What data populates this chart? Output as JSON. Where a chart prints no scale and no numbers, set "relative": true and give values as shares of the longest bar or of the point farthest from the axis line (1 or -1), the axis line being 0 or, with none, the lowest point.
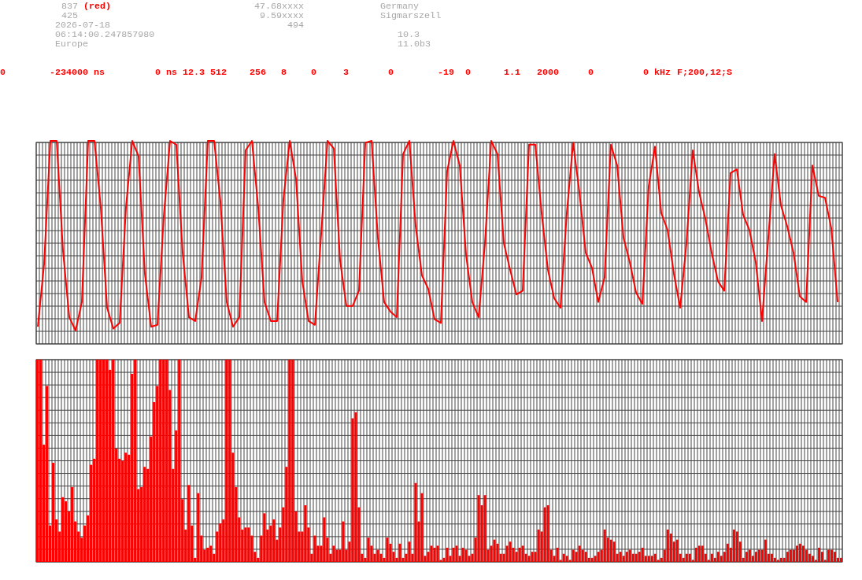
{
  "chart_data": [
    {
      "type": "line",
      "relative": true,
      "grid": true,
      "annotations": [
        "837",
        "(red)",
        "425",
        "2026-07-18",
        "06:14:00.247857980",
        "Europe",
        "47.68xxxx",
        "9.59xxxx",
        "494",
        "Germany",
        "Sigmarszell",
        "10.3",
        "11.0b3",
        "0",
        "-234000 ns",
        "0 ns",
        "12.3",
        "512",
        "256",
        "8",
        "0",
        "3",
        "0",
        "-19",
        "0",
        "1.1",
        "2000",
        "0",
        "0 kHz",
        "F;200,12;S"
      ],
      "categories": [
        null,
        null,
        null,
        null,
        null,
        null,
        null,
        null,
        null,
        null,
        null,
        null,
        null,
        null,
        null,
        null,
        null,
        null,
        null,
        null,
        null,
        null,
        null,
        null,
        null,
        null,
        null,
        null,
        null,
        null,
        null,
        null,
        null,
        null,
        null,
        null,
        null,
        null,
        null,
        null,
        null,
        null,
        null,
        null,
        null,
        null,
        null,
        null,
        null,
        null,
        null,
        null,
        null,
        null,
        null,
        null,
        null,
        null,
        null,
        null,
        null,
        null,
        null,
        null,
        null,
        null,
        null,
        null,
        null,
        null,
        null,
        null,
        null,
        null,
        null,
        null,
        null,
        null,
        null,
        null,
        null,
        null,
        null,
        null,
        null,
        null,
        null,
        null,
        null,
        null,
        null,
        null,
        null,
        null,
        null,
        null,
        null,
        null,
        null,
        null,
        null,
        null,
        null,
        null,
        null,
        null,
        null,
        null,
        null,
        null,
        null,
        null,
        null,
        null,
        null,
        null,
        null,
        null,
        null,
        null,
        null,
        null,
        null,
        null,
        null,
        null,
        null,
        null
      ],
      "series": [
        {
          "color": "#ff0000",
          "values": [
            0.02,
            0.35,
            1,
            1,
            0.42,
            0.07,
            0,
            0.15,
            1,
            1,
            0.65,
            0.12,
            0.01,
            0.04,
            0.65,
            1,
            0.92,
            0.3,
            0.02,
            0.03,
            0.6,
            1,
            0.98,
            0.41,
            0.07,
            0.05,
            0.28,
            1,
            1,
            0.68,
            0.15,
            0.02,
            0.07,
            0.95,
            1,
            0.65,
            0.15,
            0.05,
            0.05,
            0.69,
            1,
            0.8,
            0.26,
            0.05,
            0.03,
            0.51,
            1,
            0.96,
            0.37,
            0.13,
            0.13,
            0.21,
            0.99,
            1,
            0.49,
            0.15,
            0.1,
            0.07,
            0.93,
            1,
            0.55,
            0.29,
            0.22,
            0.06,
            0.04,
            0.84,
            1,
            0.87,
            0.4,
            0.15,
            0.07,
            0.46,
            1,
            0.93,
            0.46,
            0.32,
            0.19,
            0.21,
            0.98,
            0.98,
            0.62,
            0.32,
            0.17,
            0.12,
            0.62,
            0.99,
            0.73,
            0.41,
            0.33,
            0.15,
            0.28,
            0.98,
            0.87,
            0.49,
            0.36,
            0.2,
            0.14,
            0.76,
            0.97,
            0.62,
            0.53,
            0.3,
            0.12,
            0.46,
            0.95,
            0.73,
            0.59,
            0.41,
            0.26,
            0.21,
            0.83,
            0.85,
            0.61,
            0.53,
            0.36,
            0.05,
            0.49,
            0.93,
            0.66,
            0.55,
            0.41,
            0.18,
            0.15,
            0.87,
            0.71,
            0.7,
            0.54,
            0.15
          ]
        }
      ]
    },
    {
      "type": "bar",
      "relative": true,
      "grid": true,
      "categories": [
        null,
        null,
        null,
        null,
        null,
        null,
        null,
        null,
        null,
        null,
        null,
        null,
        null,
        null,
        null,
        null,
        null,
        null,
        null,
        null,
        null,
        null,
        null,
        null,
        null,
        null,
        null,
        null,
        null,
        null,
        null,
        null,
        null,
        null,
        null,
        null,
        null,
        null,
        null,
        null,
        null,
        null,
        null,
        null,
        null,
        null,
        null,
        null,
        null,
        null,
        null,
        null,
        null,
        null,
        null,
        null,
        null,
        null,
        null,
        null,
        null,
        null,
        null,
        null,
        null,
        null,
        null,
        null,
        null,
        null,
        null,
        null,
        null,
        null,
        null,
        null,
        null,
        null,
        null,
        null,
        null,
        null,
        null,
        null,
        null,
        null,
        null,
        null,
        null,
        null,
        null,
        null,
        null,
        null,
        null,
        null,
        null,
        null,
        null,
        null,
        null,
        null,
        null,
        null,
        null,
        null,
        null,
        null,
        null,
        null,
        null,
        null,
        null,
        null,
        null,
        null,
        null,
        null,
        null,
        null,
        null,
        null,
        null,
        null,
        null,
        null,
        null,
        null,
        null,
        null,
        null,
        null,
        null,
        null,
        null,
        null,
        null,
        null,
        null,
        null,
        null,
        null,
        null,
        null,
        null,
        null,
        null,
        null,
        null,
        null,
        null,
        null,
        null,
        null,
        null,
        null,
        null,
        null,
        null,
        null,
        null,
        null,
        null,
        null,
        null,
        null,
        null,
        null,
        null,
        null,
        null,
        null,
        null,
        null,
        null,
        null,
        null,
        null,
        null,
        null,
        null,
        null,
        null,
        null,
        null,
        null,
        null,
        null,
        null,
        null,
        null,
        null,
        null,
        null,
        null,
        null,
        null,
        null,
        null,
        null,
        null,
        null,
        null,
        null,
        null,
        null,
        null,
        null,
        null,
        null,
        null,
        null,
        null,
        null,
        null,
        null,
        null,
        null,
        null,
        null,
        null,
        null,
        null,
        null,
        null,
        null,
        null,
        null,
        null,
        null,
        null,
        null,
        null,
        null,
        null,
        null,
        null,
        null,
        null,
        null,
        null,
        null,
        null,
        null,
        null,
        null,
        null,
        null,
        null,
        null,
        null,
        null,
        null,
        null,
        null,
        null
      ],
      "series": [
        {
          "color": "#ff0000",
          "values": [
            1,
            1,
            0.58,
            0.87,
            0.18,
            0.49,
            0.21,
            0.15,
            0.32,
            0.3,
            0.25,
            0.37,
            0.2,
            0.15,
            0.12,
            0.18,
            0.23,
            0.48,
            0.51,
            1,
            1,
            1,
            1,
            0.95,
            1,
            0.56,
            0.51,
            0.5,
            0.54,
            0.53,
            0.93,
            1,
            0.36,
            0.37,
            0.47,
            0.46,
            0.62,
            0.79,
            0.87,
            1,
            1,
            1,
            0.85,
            0.46,
            0.65,
            1,
            0.31,
            0.16,
            0.38,
            0.18,
            0.02,
            0.34,
            0.13,
            0.06,
            0.07,
            0.08,
            0.04,
            0.15,
            0.19,
            0.21,
            1,
            1,
            0.54,
            0.37,
            0.22,
            0.16,
            0.17,
            0.17,
            0.13,
            0.05,
            0.02,
            0.13,
            0.24,
            0.16,
            0.18,
            0.21,
            0.11,
            0.17,
            0.27,
            0.47,
            1,
            1,
            0.25,
            0.15,
            0.15,
            0.28,
            0.17,
            0.04,
            0.13,
            0.08,
            0.08,
            0.22,
            0.12,
            0.04,
            0.08,
            0.06,
            0.06,
            0.2,
            0.06,
            0.1,
            0.71,
            0.74,
            0.27,
            0.04,
            0.02,
            0.12,
            0.08,
            0.04,
            0.06,
            0.04,
            0.02,
            0.12,
            0.09,
            0.05,
            0.02,
            0.09,
            0.02,
            0.04,
            0.1,
            0.04,
            0.39,
            0.2,
            0.34,
            0.03,
            0.05,
            0.08,
            0.07,
            0.08,
            0.01,
            0.02,
            0.07,
            0.03,
            0.07,
            0.08,
            0.03,
            0.07,
            0.06,
            0.03,
            0.04,
            0.12,
            0.33,
            0.28,
            0.33,
            0.06,
            0.08,
            0.11,
            0.09,
            0.04,
            0.04,
            0.08,
            0.1,
            0.07,
            0.05,
            0.07,
            0.08,
            0.04,
            0.03,
            0.05,
            0.05,
            0.16,
            0.15,
            0.27,
            0.28,
            0.06,
            0.03,
            0.07,
            0.01,
            0.04,
            0.03,
            0.01,
            0.06,
            0.05,
            0.08,
            0.06,
            0.05,
            0.02,
            0.02,
            0.03,
            0.05,
            0.06,
            0.16,
            0.12,
            0.11,
            0.1,
            0.04,
            0.05,
            0.03,
            0.05,
            0.06,
            0.04,
            0.04,
            0.05,
            0.07,
            0.03,
            0.03,
            0.03,
            0.04,
            0.01,
            0.02,
            0.06,
            0.16,
            0.14,
            0.1,
            0.11,
            0.04,
            0.02,
            0.04,
            0.04,
            0.01,
            0.07,
            0.08,
            0.08,
            0.04,
            0.01,
            0.04,
            0.02,
            0.05,
            0.03,
            0.05,
            0.09,
            0.07,
            0.16,
            0.15,
            0.1,
            0.02,
            0.05,
            0.06,
            0.03,
            0.05,
            0.06,
            0.06,
            0.11,
            0.04,
            0.04,
            0.02,
            0.01,
            0.02,
            0.02,
            0.05,
            0.06,
            0.06,
            0.08,
            0.09,
            0.08,
            0.06,
            0.04,
            0.03,
            0.01,
            0.07,
            0.05,
            0.01,
            0.06,
            0.06,
            0.05,
            0.02,
            0.02
          ]
        }
      ]
    }
  ]
}
